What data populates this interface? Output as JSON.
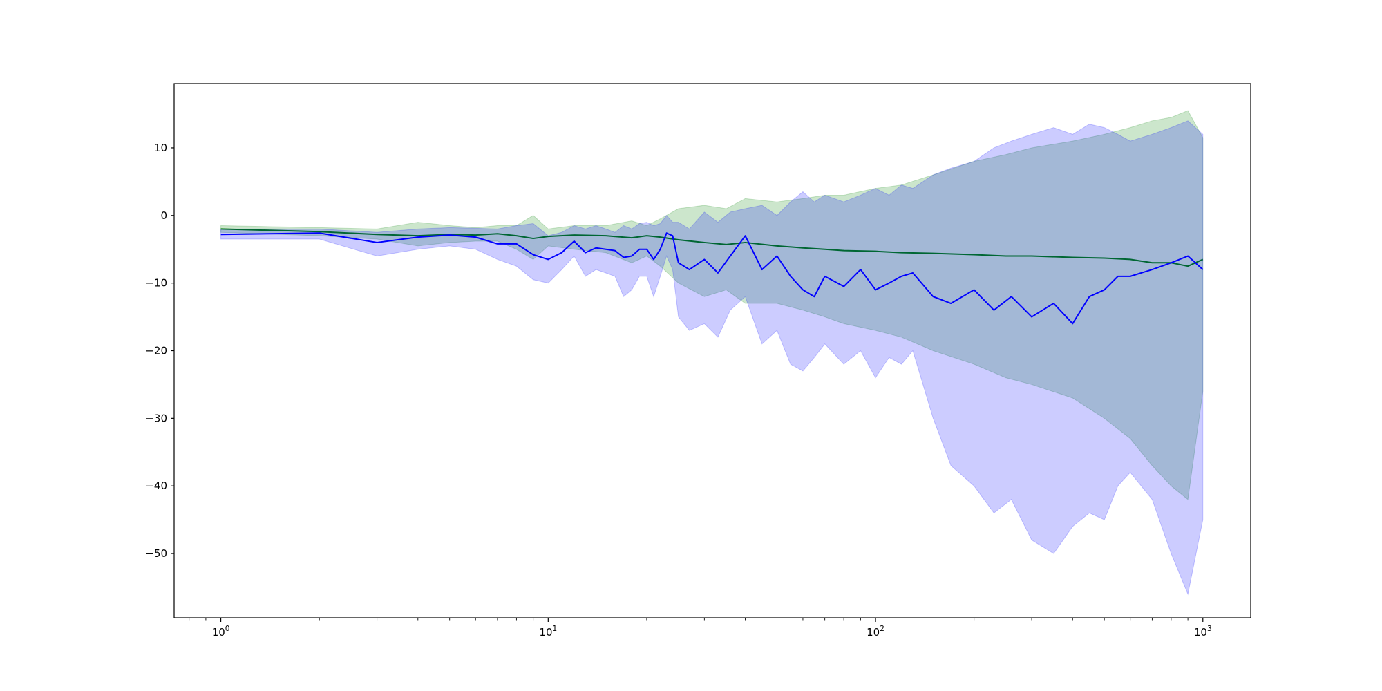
{
  "chart_data": {
    "type": "line",
    "title": "",
    "xlabel": "",
    "ylabel": "",
    "x_scale": "log",
    "xlim": [
      0.72,
      1400
    ],
    "ylim": [
      -59.5,
      19.5
    ],
    "grid": false,
    "legend": "none",
    "x_ticks": [
      {
        "value": 1,
        "base": "10",
        "exp": "0"
      },
      {
        "value": 10,
        "base": "10",
        "exp": "1"
      },
      {
        "value": 100,
        "base": "10",
        "exp": "2"
      },
      {
        "value": 1000,
        "base": "10",
        "exp": "3"
      }
    ],
    "y_ticks": [
      {
        "value": 10,
        "label": "10"
      },
      {
        "value": 0,
        "label": "0"
      },
      {
        "value": -10,
        "label": "−10"
      },
      {
        "value": -20,
        "label": "−20"
      },
      {
        "value": -30,
        "label": "−30"
      },
      {
        "value": -40,
        "label": "−40"
      },
      {
        "value": -50,
        "label": "−50"
      }
    ],
    "series": [
      {
        "color": "#008000",
        "band_color": "#008000",
        "band_opacity": 0.2,
        "x": [
          1,
          2,
          3,
          4,
          5,
          6,
          7,
          8,
          9,
          10,
          12,
          15,
          18,
          20,
          22,
          25,
          30,
          35,
          40,
          50,
          60,
          70,
          80,
          100,
          120,
          150,
          200,
          250,
          300,
          400,
          500,
          600,
          700,
          800,
          900,
          1000
        ],
        "values": [
          -2.0,
          -2.4,
          -2.8,
          -3.0,
          -2.8,
          -2.9,
          -2.7,
          -3.0,
          -3.4,
          -3.1,
          -2.9,
          -3.0,
          -3.3,
          -3.0,
          -3.2,
          -3.6,
          -4.0,
          -4.3,
          -4.0,
          -4.5,
          -4.8,
          -5.0,
          -5.2,
          -5.3,
          -5.5,
          -5.6,
          -5.8,
          -6.0,
          -6.0,
          -6.2,
          -6.3,
          -6.5,
          -7.0,
          -7.0,
          -7.5,
          -6.5
        ],
        "upper": [
          -1.5,
          -1.8,
          -2.0,
          -1.0,
          -1.5,
          -1.8,
          -1.5,
          -1.5,
          0.0,
          -2.0,
          -1.5,
          -1.5,
          -0.8,
          -1.5,
          -0.5,
          1.0,
          1.5,
          1.0,
          2.5,
          2.0,
          2.5,
          3.0,
          3.0,
          4.0,
          4.5,
          6.0,
          8.0,
          9.0,
          10.0,
          11.0,
          12.0,
          13.0,
          14.0,
          14.5,
          15.5,
          11.5
        ],
        "lower": [
          -2.5,
          -3.0,
          -3.5,
          -4.5,
          -4.0,
          -3.8,
          -3.8,
          -5.0,
          -6.5,
          -4.5,
          -5.0,
          -5.5,
          -7.0,
          -6.0,
          -7.5,
          -10.0,
          -12.0,
          -11.0,
          -13.0,
          -13.0,
          -14.0,
          -15.0,
          -16.0,
          -17.0,
          -18.0,
          -20.0,
          -22.0,
          -24.0,
          -25.0,
          -27.0,
          -30.0,
          -33.0,
          -37.0,
          -40.0,
          -42.0,
          -26.0
        ]
      },
      {
        "color": "#0000ff",
        "band_color": "#0000ff",
        "band_opacity": 0.2,
        "x": [
          1,
          2,
          3,
          4,
          5,
          6,
          7,
          8,
          9,
          10,
          11,
          12,
          13,
          14,
          15,
          16,
          17,
          18,
          19,
          20,
          21,
          22,
          23,
          24,
          25,
          27,
          30,
          33,
          36,
          40,
          45,
          50,
          55,
          60,
          65,
          70,
          80,
          90,
          100,
          110,
          120,
          130,
          150,
          170,
          200,
          230,
          260,
          300,
          350,
          400,
          450,
          500,
          550,
          600,
          700,
          800,
          900,
          1000
        ],
        "values": [
          -2.8,
          -2.6,
          -4.0,
          -3.2,
          -2.9,
          -3.2,
          -4.2,
          -4.2,
          -5.8,
          -6.5,
          -5.5,
          -3.8,
          -5.5,
          -4.8,
          -5.0,
          -5.2,
          -6.2,
          -6.0,
          -5.0,
          -5.0,
          -6.5,
          -5.0,
          -2.6,
          -3.0,
          -7.0,
          -8.0,
          -6.5,
          -8.5,
          -6.0,
          -3.0,
          -8.0,
          -6.0,
          -9.0,
          -11.0,
          -12.0,
          -9.0,
          -10.5,
          -8.0,
          -11.0,
          -10.0,
          -9.0,
          -8.5,
          -12.0,
          -13.0,
          -11.0,
          -14.0,
          -12.0,
          -15.0,
          -13.0,
          -16.0,
          -12.0,
          -11.0,
          -9.0,
          -9.0,
          -8.0,
          -7.0,
          -6.0,
          -8.0
        ],
        "upper": [
          -2.0,
          -2.0,
          -2.5,
          -2.0,
          -1.8,
          -1.9,
          -2.0,
          -1.5,
          -1.2,
          -3.0,
          -2.5,
          -1.5,
          -2.0,
          -1.5,
          -2.0,
          -2.5,
          -1.5,
          -2.0,
          -1.2,
          -1.0,
          -1.5,
          -1.2,
          0.0,
          -1.0,
          -1.0,
          -2.0,
          0.5,
          -1.0,
          0.5,
          1.0,
          1.5,
          0.0,
          2.0,
          3.5,
          2.0,
          3.0,
          2.0,
          3.0,
          4.0,
          3.0,
          4.5,
          4.0,
          6.0,
          7.0,
          8.0,
          10.0,
          11.0,
          12.0,
          13.0,
          12.0,
          13.5,
          13.0,
          12.0,
          11.0,
          12.0,
          13.0,
          14.0,
          12.0
        ],
        "lower": [
          -3.5,
          -3.5,
          -6.0,
          -5.0,
          -4.5,
          -5.0,
          -6.5,
          -7.5,
          -9.5,
          -10.0,
          -8.0,
          -6.0,
          -9.0,
          -8.0,
          -8.5,
          -9.0,
          -12.0,
          -11.0,
          -9.0,
          -9.0,
          -12.0,
          -9.0,
          -6.0,
          -8.0,
          -15.0,
          -17.0,
          -16.0,
          -18.0,
          -14.0,
          -12.0,
          -19.0,
          -17.0,
          -22.0,
          -23.0,
          -21.0,
          -19.0,
          -22.0,
          -20.0,
          -24.0,
          -21.0,
          -22.0,
          -20.0,
          -30.0,
          -37.0,
          -40.0,
          -44.0,
          -42.0,
          -48.0,
          -50.0,
          -46.0,
          -44.0,
          -45.0,
          -40.0,
          -38.0,
          -42.0,
          -50.0,
          -56.0,
          -45.0
        ]
      }
    ]
  }
}
